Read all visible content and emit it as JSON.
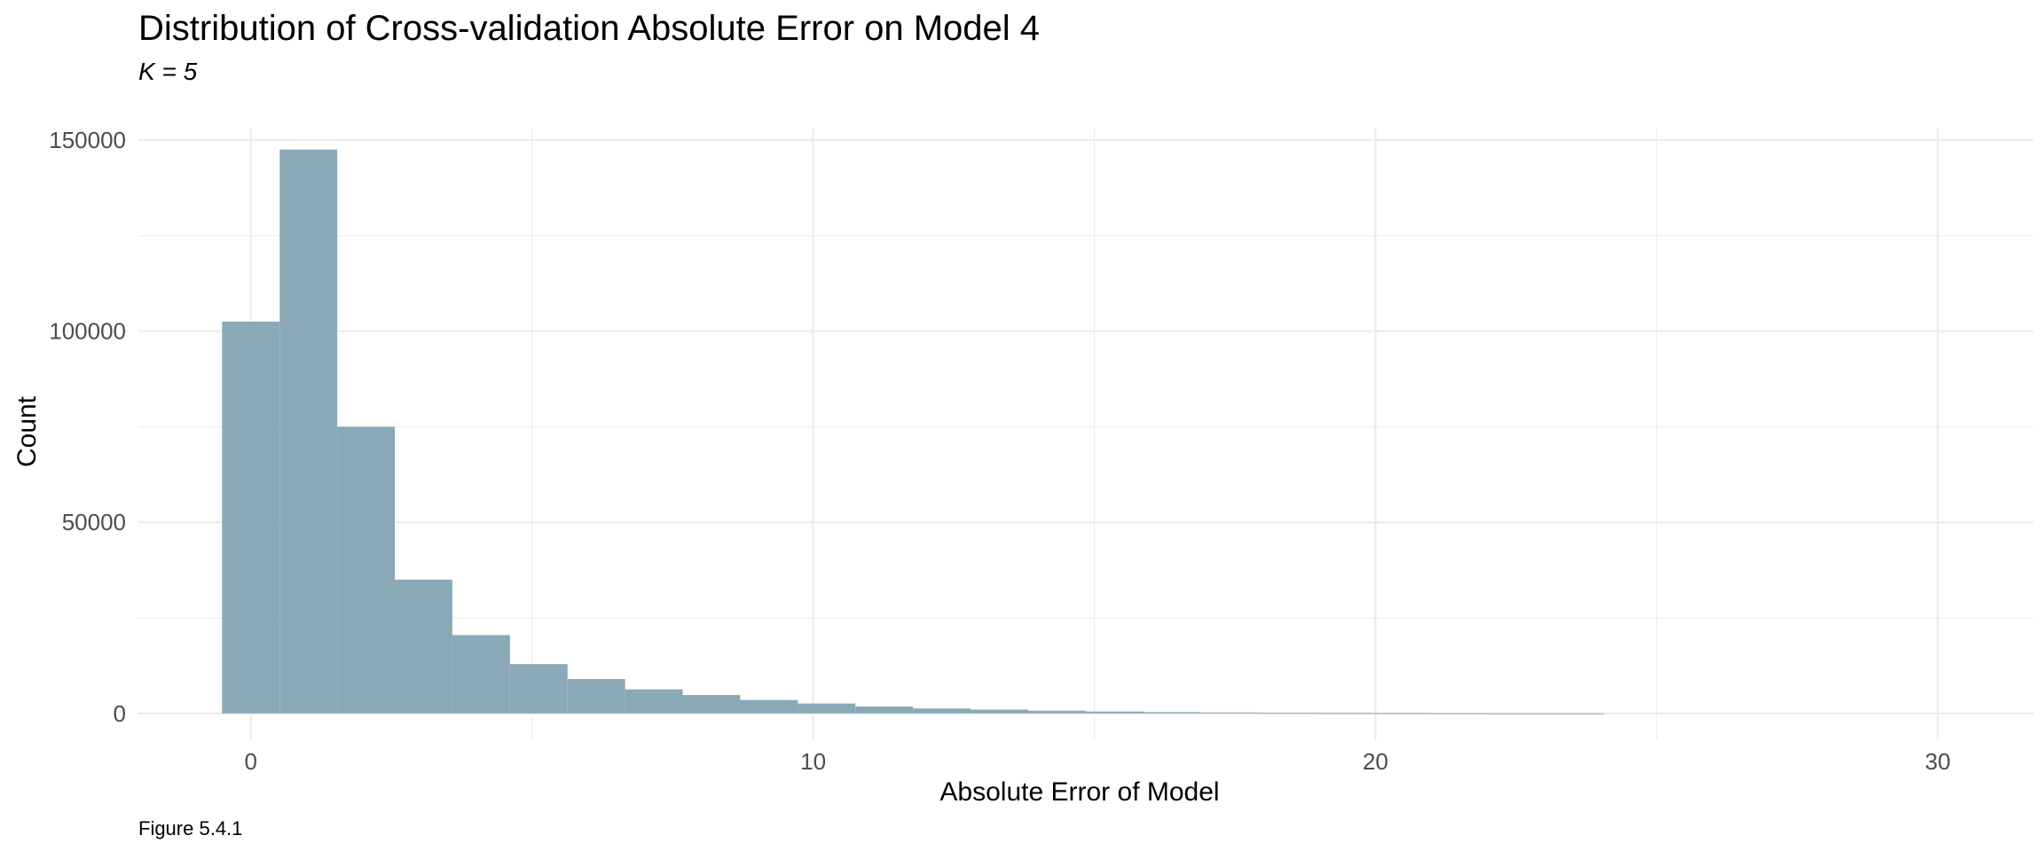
{
  "chart_data": {
    "type": "bar",
    "title": "Distribution of Cross-validation Absolute Error on Model 4",
    "subtitle": "K = 5",
    "xlabel": "Absolute Error of Model",
    "ylabel": "Count",
    "caption": "Figure 5.4.1",
    "bar_color": "#8aa9b7",
    "grid_color": "#ebebeb",
    "grid": true,
    "xlim": [
      -2.0,
      31.7
    ],
    "ylim": [
      -7000,
      153000
    ],
    "xticks": [
      0,
      10,
      20,
      30
    ],
    "yticks": [
      0,
      50000,
      100000,
      150000
    ],
    "bin_width": 1.024,
    "x": [
      0.0,
      1.024,
      2.048,
      3.072,
      4.096,
      5.12,
      6.144,
      7.168,
      8.192,
      9.216,
      10.24,
      11.264,
      12.288,
      13.312,
      14.336,
      15.36,
      16.384,
      17.408,
      18.432,
      19.456,
      20.48,
      21.504,
      22.528,
      23.552
    ],
    "values": [
      102500,
      147500,
      75000,
      35000,
      20500,
      12900,
      9000,
      6300,
      4800,
      3500,
      2600,
      1800,
      1300,
      1000,
      700,
      500,
      350,
      250,
      180,
      130,
      90,
      60,
      40,
      25
    ]
  }
}
